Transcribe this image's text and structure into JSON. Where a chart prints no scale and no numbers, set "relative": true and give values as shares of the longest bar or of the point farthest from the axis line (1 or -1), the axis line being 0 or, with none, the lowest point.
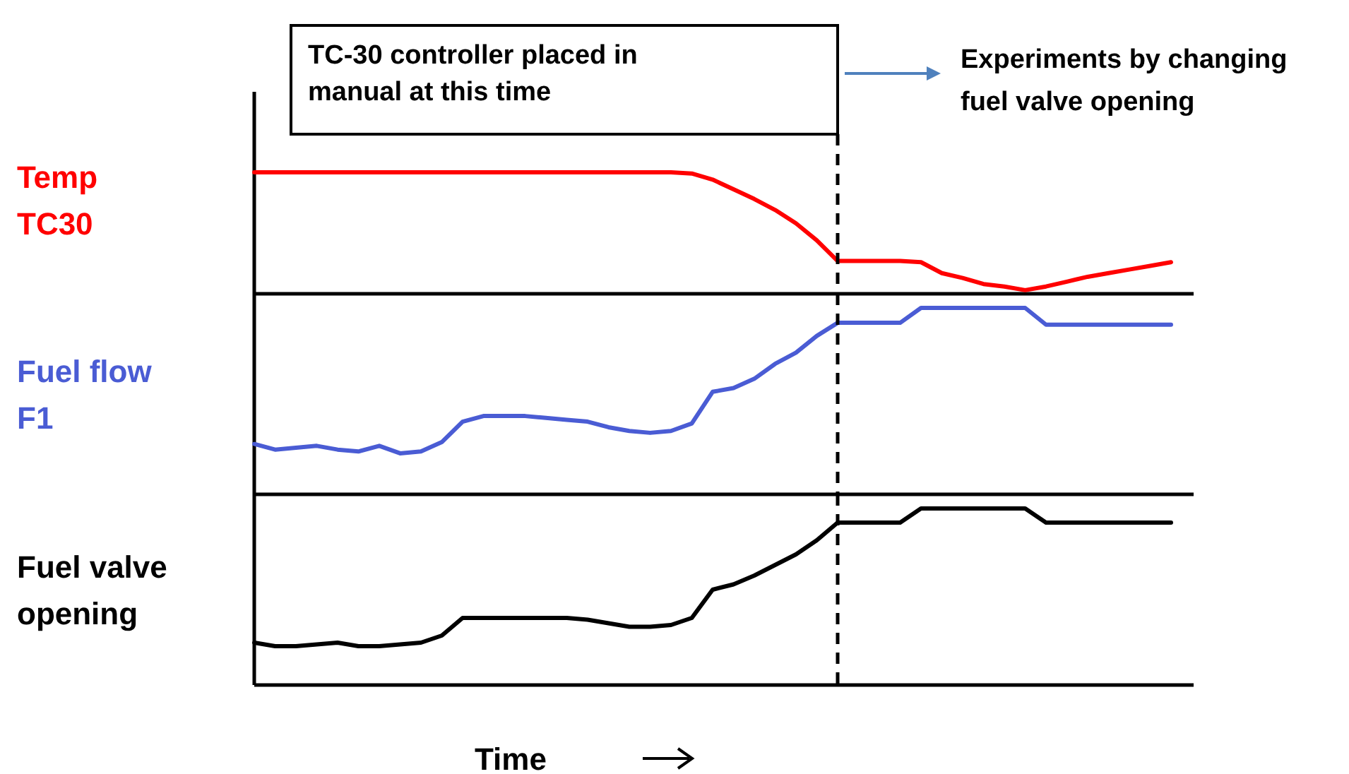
{
  "chart_data": [
    {
      "type": "line",
      "relative": true,
      "ylabel": "Temp\nTC30",
      "categories": [
        null,
        null,
        null,
        null,
        null,
        null,
        null,
        null,
        null,
        null,
        null,
        null,
        null,
        null,
        null,
        null,
        null,
        null,
        null,
        null,
        null,
        null,
        null,
        null,
        null,
        null,
        null,
        null,
        null,
        null,
        null,
        null,
        null,
        null,
        null,
        null,
        null,
        null,
        null,
        null,
        null,
        null,
        null,
        null,
        null
      ],
      "series": [
        {
          "color": "#ff0000",
          "values": [
            1,
            1,
            1,
            1,
            1,
            1,
            1,
            1,
            1,
            1,
            1,
            1,
            1,
            1,
            1,
            1,
            1,
            1,
            1,
            1,
            1,
            0.99,
            0.94,
            0.86,
            0.78,
            0.69,
            0.58,
            0.44,
            0.27,
            0.27,
            0.27,
            0.27,
            0.26,
            0.17,
            0.13,
            0.08,
            0.06,
            0.03,
            0.06,
            0.1,
            0.14,
            0.17,
            0.2,
            0.23,
            0.26
          ]
        }
      ],
      "annotations": [
        "TC-30 controller placed in\nmanual at this time",
        "Experiments by changing\nfuel valve opening"
      ]
    },
    {
      "type": "line",
      "relative": true,
      "ylabel": "Fuel flow\nF1",
      "categories": [
        null,
        null,
        null,
        null,
        null,
        null,
        null,
        null,
        null,
        null,
        null,
        null,
        null,
        null,
        null,
        null,
        null,
        null,
        null,
        null,
        null,
        null,
        null,
        null,
        null,
        null,
        null,
        null,
        null,
        null,
        null,
        null,
        null,
        null,
        null,
        null,
        null,
        null,
        null,
        null,
        null,
        null,
        null,
        null,
        null
      ],
      "series": [
        {
          "color": "#4a5cd4",
          "values": [
            0.27,
            0.24,
            0.25,
            0.26,
            0.24,
            0.23,
            0.26,
            0.22,
            0.23,
            0.28,
            0.39,
            0.42,
            0.42,
            0.42,
            0.41,
            0.4,
            0.39,
            0.36,
            0.34,
            0.33,
            0.34,
            0.38,
            0.55,
            0.57,
            0.62,
            0.7,
            0.76,
            0.85,
            0.92,
            0.92,
            0.92,
            0.92,
            1,
            1,
            1,
            1,
            1,
            1,
            0.91,
            0.91,
            0.91,
            0.91,
            0.91,
            0.91,
            0.91
          ]
        }
      ]
    },
    {
      "type": "line",
      "relative": true,
      "ylabel": "Fuel valve\nopening",
      "xlabel": "Time",
      "categories": [
        null,
        null,
        null,
        null,
        null,
        null,
        null,
        null,
        null,
        null,
        null,
        null,
        null,
        null,
        null,
        null,
        null,
        null,
        null,
        null,
        null,
        null,
        null,
        null,
        null,
        null,
        null,
        null,
        null,
        null,
        null,
        null,
        null,
        null,
        null,
        null,
        null,
        null,
        null,
        null,
        null,
        null,
        null,
        null,
        null
      ],
      "series": [
        {
          "color": "#000000",
          "values": [
            0.24,
            0.22,
            0.22,
            0.23,
            0.24,
            0.22,
            0.22,
            0.23,
            0.24,
            0.28,
            0.38,
            0.38,
            0.38,
            0.38,
            0.38,
            0.38,
            0.37,
            0.35,
            0.33,
            0.33,
            0.34,
            0.38,
            0.54,
            0.57,
            0.62,
            0.68,
            0.74,
            0.82,
            0.92,
            0.92,
            0.92,
            0.92,
            1,
            1,
            1,
            1,
            1,
            1,
            0.92,
            0.92,
            0.92,
            0.92,
            0.92,
            0.92,
            0.92
          ]
        }
      ]
    }
  ]
}
